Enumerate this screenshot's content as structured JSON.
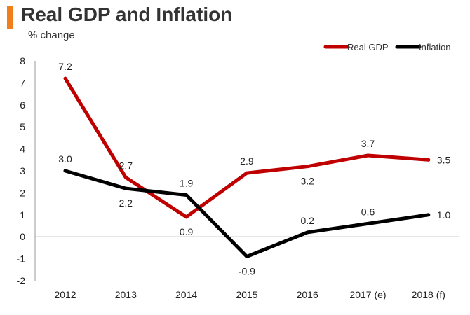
{
  "colors": {
    "accent": "#F07F1A",
    "real_gdp": "#C00000",
    "inflation": "#000000",
    "axis": "#999999"
  },
  "chart_data": {
    "type": "line",
    "title": "Real GDP and Inflation",
    "subtitle": "% change",
    "xlabel": "",
    "ylabel": "% change",
    "categories": [
      "2012",
      "2013",
      "2014",
      "2015",
      "2016",
      "2017 (e)",
      "2018 (f)"
    ],
    "ylim": [
      -2,
      8
    ],
    "yticks": [
      "8",
      "7",
      "6",
      "5",
      "4",
      "3",
      "2",
      "1",
      "0",
      "-1",
      "-2"
    ],
    "legend_position": "top-right",
    "series": [
      {
        "name": "Real GDP",
        "values": [
          7.2,
          2.7,
          0.9,
          2.9,
          3.2,
          3.7,
          3.5
        ],
        "labels": [
          "7.2",
          "2.7",
          "0.9",
          "2.9",
          "3.2",
          "3.7",
          "3.5"
        ]
      },
      {
        "name": "Inflation",
        "values": [
          3.0,
          2.2,
          1.9,
          -0.9,
          0.2,
          0.6,
          1.0
        ],
        "labels": [
          "3.0",
          "2.2",
          "1.9",
          "-0.9",
          "0.2",
          "0.6",
          "1.0"
        ]
      }
    ]
  }
}
